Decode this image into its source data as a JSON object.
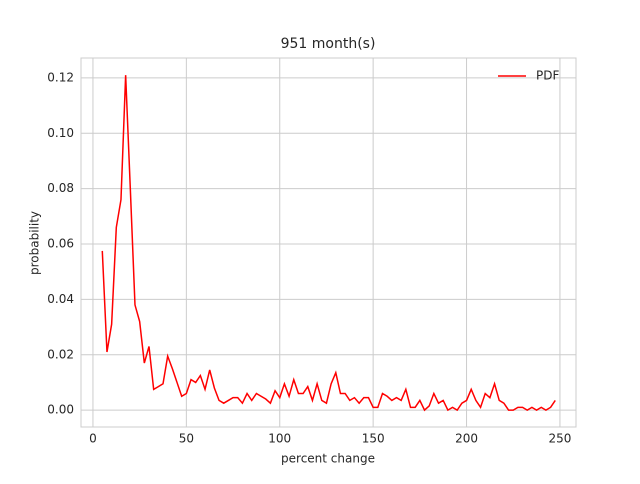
{
  "chart_data": {
    "type": "line",
    "title": "951 month(s)",
    "x_label": "percent change",
    "y_label": "probability",
    "x": [
      5,
      7.5,
      10,
      12.5,
      15,
      17.5,
      20,
      22.5,
      25,
      27.5,
      30,
      32.5,
      35,
      37.5,
      40,
      42.5,
      45,
      47.5,
      50,
      52.5,
      55,
      57.5,
      60,
      62.5,
      65,
      67.5,
      70,
      72.5,
      75,
      77.5,
      80,
      82.5,
      85,
      87.5,
      90,
      92.5,
      95,
      97.5,
      100,
      102.5,
      105,
      107.5,
      110,
      112.5,
      115,
      117.5,
      120,
      122.5,
      125,
      127.5,
      130,
      132.5,
      135,
      137.5,
      140,
      142.5,
      145,
      147.5,
      150,
      152.5,
      155,
      157.5,
      160,
      162.5,
      165,
      167.5,
      170,
      172.5,
      175,
      177.5,
      180,
      182.5,
      185,
      187.5,
      190,
      192.5,
      195,
      197.5,
      200,
      202.5,
      205,
      207.5,
      210,
      212.5,
      215,
      217.5,
      220,
      222.5,
      225,
      227.5,
      230,
      232.5,
      235,
      237.5,
      240,
      242.5,
      245,
      247.5
    ],
    "series": [
      {
        "name": "PDF",
        "color": "#ff0000",
        "values": [
          0.0575,
          0.021,
          0.031,
          0.066,
          0.076,
          0.121,
          0.08,
          0.038,
          0.032,
          0.017,
          0.023,
          0.0075,
          0.0085,
          0.0095,
          0.0195,
          0.015,
          0.01,
          0.005,
          0.006,
          0.011,
          0.01,
          0.0125,
          0.0075,
          0.0145,
          0.008,
          0.0035,
          0.0025,
          0.0035,
          0.0045,
          0.0045,
          0.0025,
          0.006,
          0.0035,
          0.006,
          0.005,
          0.004,
          0.0025,
          0.007,
          0.0045,
          0.0095,
          0.005,
          0.011,
          0.006,
          0.006,
          0.0085,
          0.0035,
          0.0095,
          0.0035,
          0.0025,
          0.0095,
          0.0135,
          0.006,
          0.006,
          0.0035,
          0.0045,
          0.0025,
          0.0045,
          0.0045,
          0.001,
          0.001,
          0.006,
          0.005,
          0.0035,
          0.0045,
          0.0035,
          0.0075,
          0.001,
          0.001,
          0.0035,
          0,
          0.0015,
          0.006,
          0.0025,
          0.0035,
          0,
          0.001,
          0,
          0.0025,
          0.0035,
          0.0075,
          0.0035,
          0.001,
          0.006,
          0.0045,
          0.0095,
          0.0035,
          0.0025,
          0,
          0,
          0.001,
          0.001,
          0,
          0.001,
          0,
          0.001,
          0,
          0.001,
          0.0035
        ]
      }
    ],
    "xlim": [
      -6.4,
      258.6
    ],
    "ylim": [
      -0.0061,
      0.1272
    ],
    "xticks": [
      0,
      50,
      100,
      150,
      200,
      250
    ],
    "yticks": [
      {
        "value": 0,
        "label": "0.00"
      },
      0.02,
      0.04,
      0.06,
      0.08,
      {
        "value": 0.1,
        "label": "0.10"
      },
      0.12
    ],
    "grid": true,
    "legend": "upper right"
  }
}
